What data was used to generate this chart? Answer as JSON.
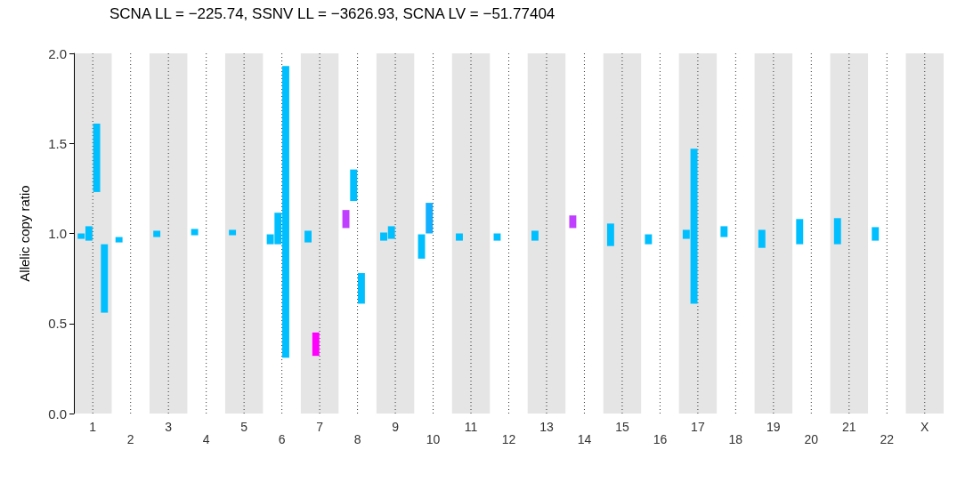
{
  "chart_data": {
    "type": "bar",
    "title": "SCNA LL = −225.74, SSNV LL = −3626.93, SCNA LV = −51.77404",
    "ylabel": "Allelic copy ratio",
    "categories": [
      "1",
      "2",
      "3",
      "4",
      "5",
      "6",
      "7",
      "8",
      "9",
      "10",
      "11",
      "12",
      "13",
      "14",
      "15",
      "16",
      "17",
      "18",
      "19",
      "20",
      "21",
      "22",
      "X"
    ],
    "series": [
      {
        "color": "#00bfff",
        "colors": [
          "#00bfff",
          "#00bfff",
          "#00bfff",
          "#00bfff",
          "#00bfff",
          "#00bfff",
          "#00bfff",
          "#bf3eff",
          "#00bfff",
          "#00bfff",
          "#00bfff",
          "#00bfff",
          "#00bfff",
          "#bf3eff",
          "#00bfff",
          "#00bfff",
          "#00bfff",
          "#00bfff",
          "#00bfff",
          "#00bfff",
          "#00bfff",
          "#00bfff",
          null
        ],
        "base": [
          0.97,
          0.95,
          0.98,
          0.99,
          0.99,
          0.94,
          0.95,
          1.03,
          0.96,
          0.86,
          0.96,
          0.96,
          0.96,
          1.03,
          0.93,
          0.94,
          0.97,
          0.98,
          0.92,
          0.94,
          0.94,
          0.96,
          null
        ],
        "values": [
          0.03,
          0.03,
          0.035,
          0.035,
          0.03,
          0.055,
          0.065,
          0.1,
          0.045,
          0.135,
          0.04,
          0.04,
          0.055,
          0.07,
          0.125,
          0.055,
          0.05,
          0.06,
          0.1,
          0.14,
          0.145,
          0.075,
          null
        ]
      },
      {
        "color": "#00bfff",
        "colors": [
          "#00bfff",
          null,
          null,
          null,
          null,
          "#00bfff",
          "#ff00ff",
          "#00bfff",
          "#00bfff",
          "#14b0ff",
          null,
          null,
          null,
          null,
          null,
          null,
          "#00bfff",
          null,
          null,
          null,
          null,
          null,
          null
        ],
        "base": [
          0.96,
          null,
          null,
          null,
          null,
          0.94,
          0.32,
          1.18,
          0.97,
          1.0,
          null,
          null,
          null,
          null,
          null,
          null,
          0.61,
          null,
          null,
          null,
          null,
          null,
          null
        ],
        "values": [
          0.08,
          null,
          null,
          null,
          null,
          0.175,
          0.13,
          0.175,
          0.07,
          0.17,
          null,
          null,
          null,
          null,
          null,
          null,
          0.86,
          null,
          null,
          null,
          null,
          null,
          null
        ]
      },
      {
        "color": "#00bfff",
        "base": [
          1.23,
          null,
          null,
          null,
          null,
          0.31,
          null,
          0.61,
          null,
          null,
          null,
          null,
          null,
          null,
          null,
          null,
          null,
          null,
          null,
          null,
          null,
          null,
          null
        ],
        "values": [
          0.38,
          null,
          null,
          null,
          null,
          1.62,
          null,
          0.17,
          null,
          null,
          null,
          null,
          null,
          null,
          null,
          null,
          null,
          null,
          null,
          null,
          null,
          null,
          null
        ]
      },
      {
        "color": "#00bfff",
        "base": [
          0.56,
          null,
          null,
          null,
          null,
          null,
          null,
          null,
          null,
          null,
          null,
          null,
          null,
          null,
          null,
          null,
          null,
          null,
          null,
          null,
          null,
          null,
          null
        ],
        "values": [
          0.38,
          null,
          null,
          null,
          null,
          null,
          null,
          null,
          null,
          null,
          null,
          null,
          null,
          null,
          null,
          null,
          null,
          null,
          null,
          null,
          null,
          null,
          null
        ]
      }
    ],
    "ylim": [
      0,
      2
    ],
    "yticks": [
      {
        "value": 0,
        "label": "0.0"
      },
      {
        "value": 0.5,
        "label": "0.5"
      },
      {
        "value": 1,
        "label": "1.0"
      },
      {
        "value": 1.5,
        "label": "1.5"
      },
      {
        "value": 2,
        "label": "2.0"
      }
    ],
    "bands": [
      {
        "axis": "x",
        "from": "1",
        "to": "1",
        "color": "#e5e5e5"
      },
      {
        "axis": "x",
        "from": "3",
        "to": "3",
        "color": "#e5e5e5"
      },
      {
        "axis": "x",
        "from": "5",
        "to": "5",
        "color": "#e5e5e5"
      },
      {
        "axis": "x",
        "from": "7",
        "to": "7",
        "color": "#e5e5e5"
      },
      {
        "axis": "x",
        "from": "9",
        "to": "9",
        "color": "#e5e5e5"
      },
      {
        "axis": "x",
        "from": "11",
        "to": "11",
        "color": "#e5e5e5"
      },
      {
        "axis": "x",
        "from": "13",
        "to": "13",
        "color": "#e5e5e5"
      },
      {
        "axis": "x",
        "from": "15",
        "to": "15",
        "color": "#e5e5e5"
      },
      {
        "axis": "x",
        "from": "17",
        "to": "17",
        "color": "#e5e5e5"
      },
      {
        "axis": "x",
        "from": "19",
        "to": "19",
        "color": "#e5e5e5"
      },
      {
        "axis": "x",
        "from": "21",
        "to": "21",
        "color": "#e5e5e5"
      },
      {
        "axis": "x",
        "from": "X",
        "to": "X",
        "color": "#e5e5e5"
      }
    ],
    "grid": "x"
  }
}
